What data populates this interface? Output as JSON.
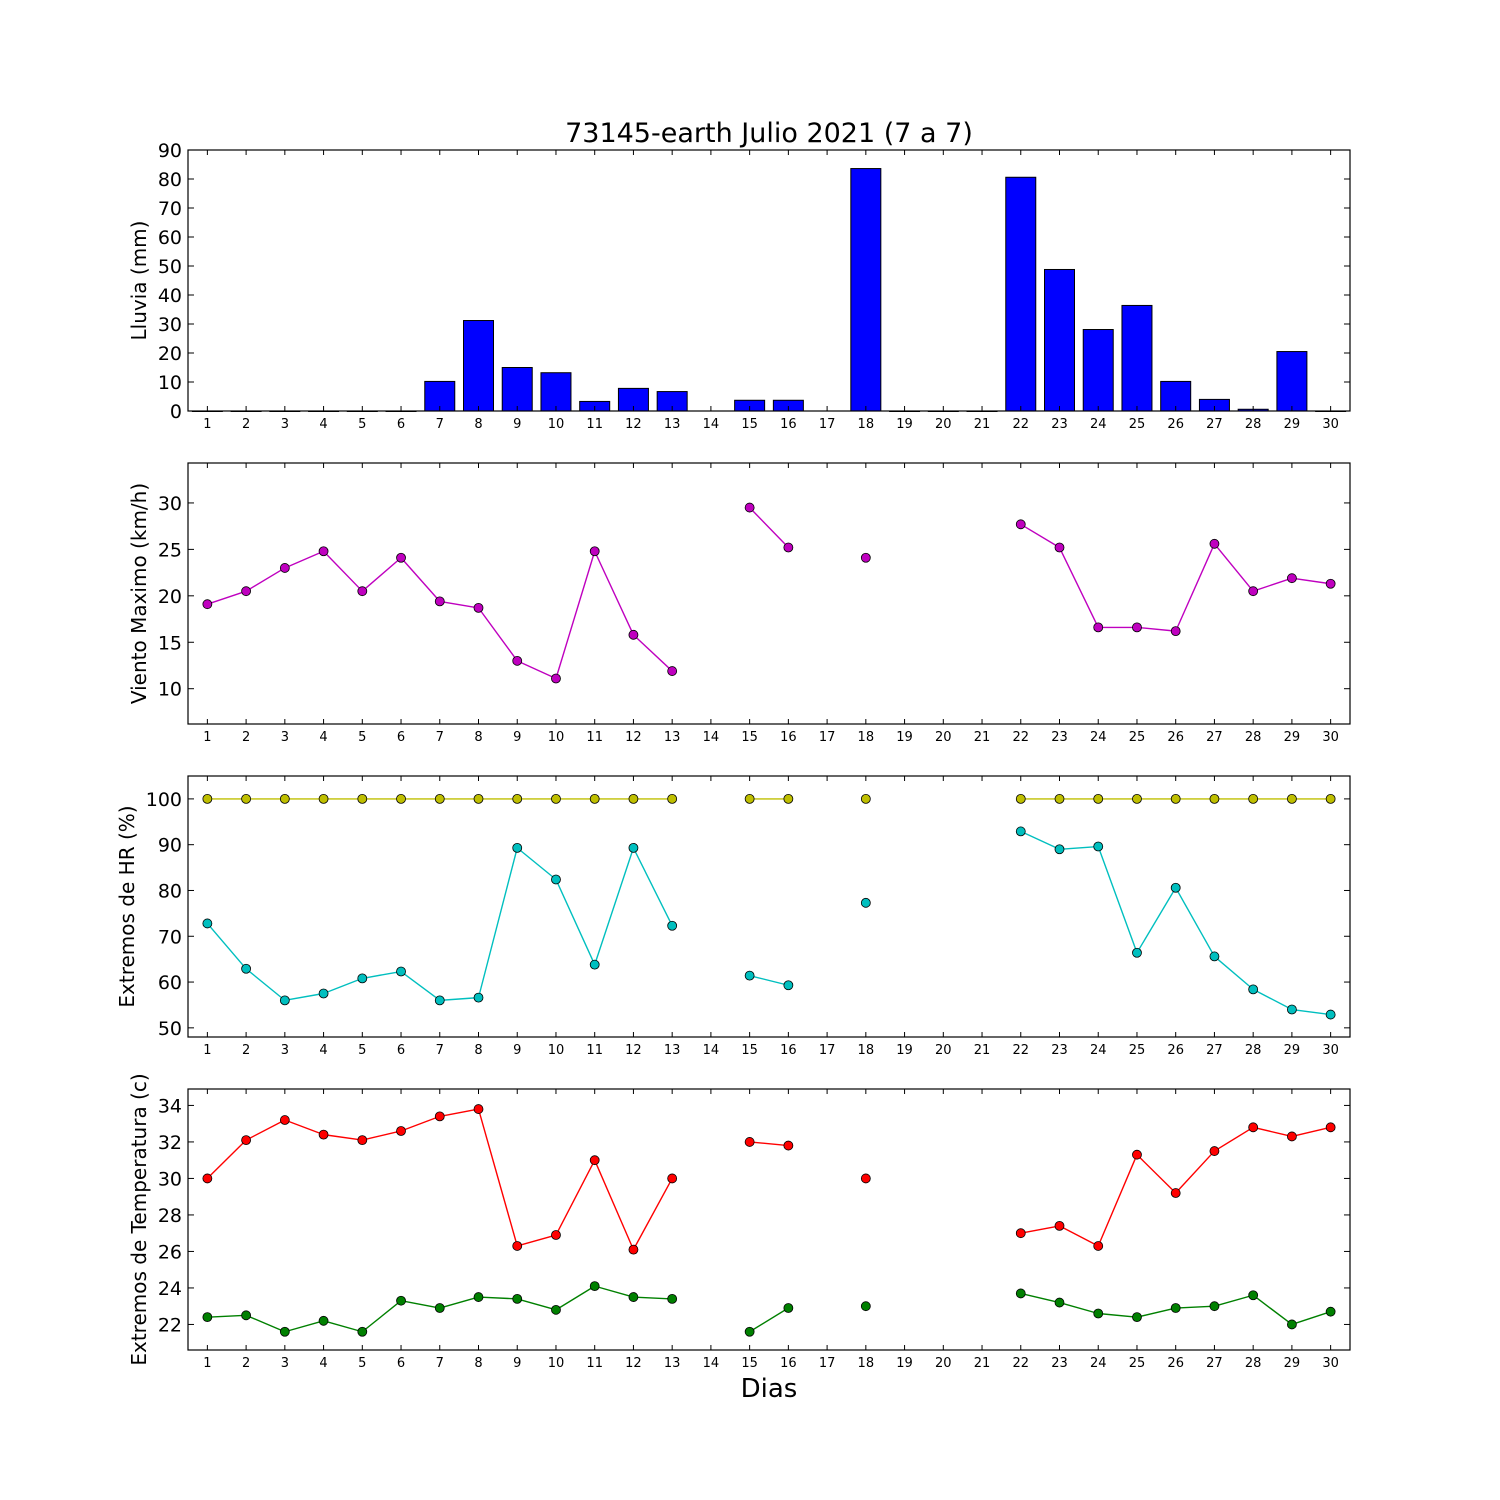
{
  "chart_data": {
    "title": "73145-earth Julio 2021  (7 a 7)",
    "xlabel": "Dias",
    "x_ticks": [
      "1",
      "2",
      "3",
      "4",
      "5",
      "6",
      "7",
      "8",
      "9",
      "10",
      "11",
      "12",
      "13",
      "14",
      "15",
      "16",
      "17",
      "18",
      "19",
      "20",
      "21",
      "22",
      "23",
      "24",
      "25",
      "26",
      "27",
      "28",
      "29",
      "30"
    ],
    "panels": [
      {
        "type": "bar",
        "ylabel": "Lluvia (mm)",
        "ylim": [
          0,
          90
        ],
        "yticks": [
          0,
          10,
          20,
          30,
          40,
          50,
          60,
          70,
          80,
          90
        ],
        "series": [
          {
            "color": "#0000ff",
            "values": [
              0,
              0,
              0,
              0,
              0,
              0,
              10.2,
              31.2,
              15.0,
              13.2,
              3.3,
              7.8,
              6.7,
              null,
              3.7,
              3.7,
              null,
              83.6,
              0,
              0,
              0,
              80.6,
              48.8,
              28.1,
              36.4,
              10.2,
              4.0,
              0.6,
              20.5,
              0
            ]
          }
        ]
      },
      {
        "type": "line",
        "ylabel": "Viento Maximo (km/h)",
        "ylim": [
          6.2,
          34.3
        ],
        "yticks": [
          10,
          15,
          20,
          25,
          30
        ],
        "series": [
          {
            "color": "#bf00bf",
            "values": [
              19.1,
              20.5,
              23.0,
              24.8,
              20.5,
              24.1,
              19.4,
              18.7,
              13.0,
              11.1,
              24.8,
              15.8,
              11.9,
              null,
              29.5,
              25.2,
              null,
              24.1,
              null,
              null,
              null,
              27.7,
              25.2,
              16.6,
              16.6,
              16.2,
              25.6,
              20.5,
              21.9,
              21.3
            ]
          }
        ]
      },
      {
        "type": "line",
        "ylabel": "Extremos de HR (%)",
        "ylim": [
          48,
          105
        ],
        "yticks": [
          50,
          60,
          70,
          80,
          90,
          100
        ],
        "series": [
          {
            "color": "#bfbf00",
            "values": [
              100,
              100,
              100,
              100,
              100,
              100,
              100,
              100,
              100,
              100,
              100,
              100,
              100,
              null,
              100,
              100,
              null,
              100,
              null,
              null,
              null,
              100,
              100,
              100,
              100,
              100,
              100,
              100,
              100,
              100
            ]
          },
          {
            "color": "#00bfbf",
            "values": [
              72.8,
              62.9,
              56.0,
              57.5,
              60.8,
              62.3,
              56.0,
              56.6,
              89.3,
              82.4,
              63.8,
              89.3,
              72.3,
              null,
              61.4,
              59.3,
              null,
              77.3,
              null,
              null,
              null,
              92.9,
              89.0,
              89.6,
              66.4,
              80.6,
              65.6,
              58.4,
              54.0,
              52.9
            ]
          }
        ]
      },
      {
        "type": "line",
        "ylabel": "Extremos de Temperatura (c)",
        "ylim": [
          20.6,
          34.9
        ],
        "yticks": [
          22,
          24,
          26,
          28,
          30,
          32,
          34
        ],
        "series": [
          {
            "color": "#ff0000",
            "values": [
              30.0,
              32.1,
              33.2,
              32.4,
              32.1,
              32.6,
              33.4,
              33.8,
              26.3,
              26.9,
              31.0,
              26.1,
              30.0,
              null,
              32.0,
              31.8,
              null,
              30.0,
              null,
              null,
              null,
              27.0,
              27.4,
              26.3,
              31.3,
              29.2,
              31.5,
              32.8,
              32.3,
              32.8
            ]
          },
          {
            "color": "#008000",
            "values": [
              22.4,
              22.5,
              21.6,
              22.2,
              21.6,
              23.3,
              22.9,
              23.5,
              23.4,
              22.8,
              24.1,
              23.5,
              23.4,
              null,
              21.6,
              22.9,
              null,
              23.0,
              null,
              null,
              null,
              23.7,
              23.2,
              22.6,
              22.4,
              22.9,
              23.0,
              23.6,
              22.0,
              22.7
            ]
          }
        ]
      }
    ]
  }
}
